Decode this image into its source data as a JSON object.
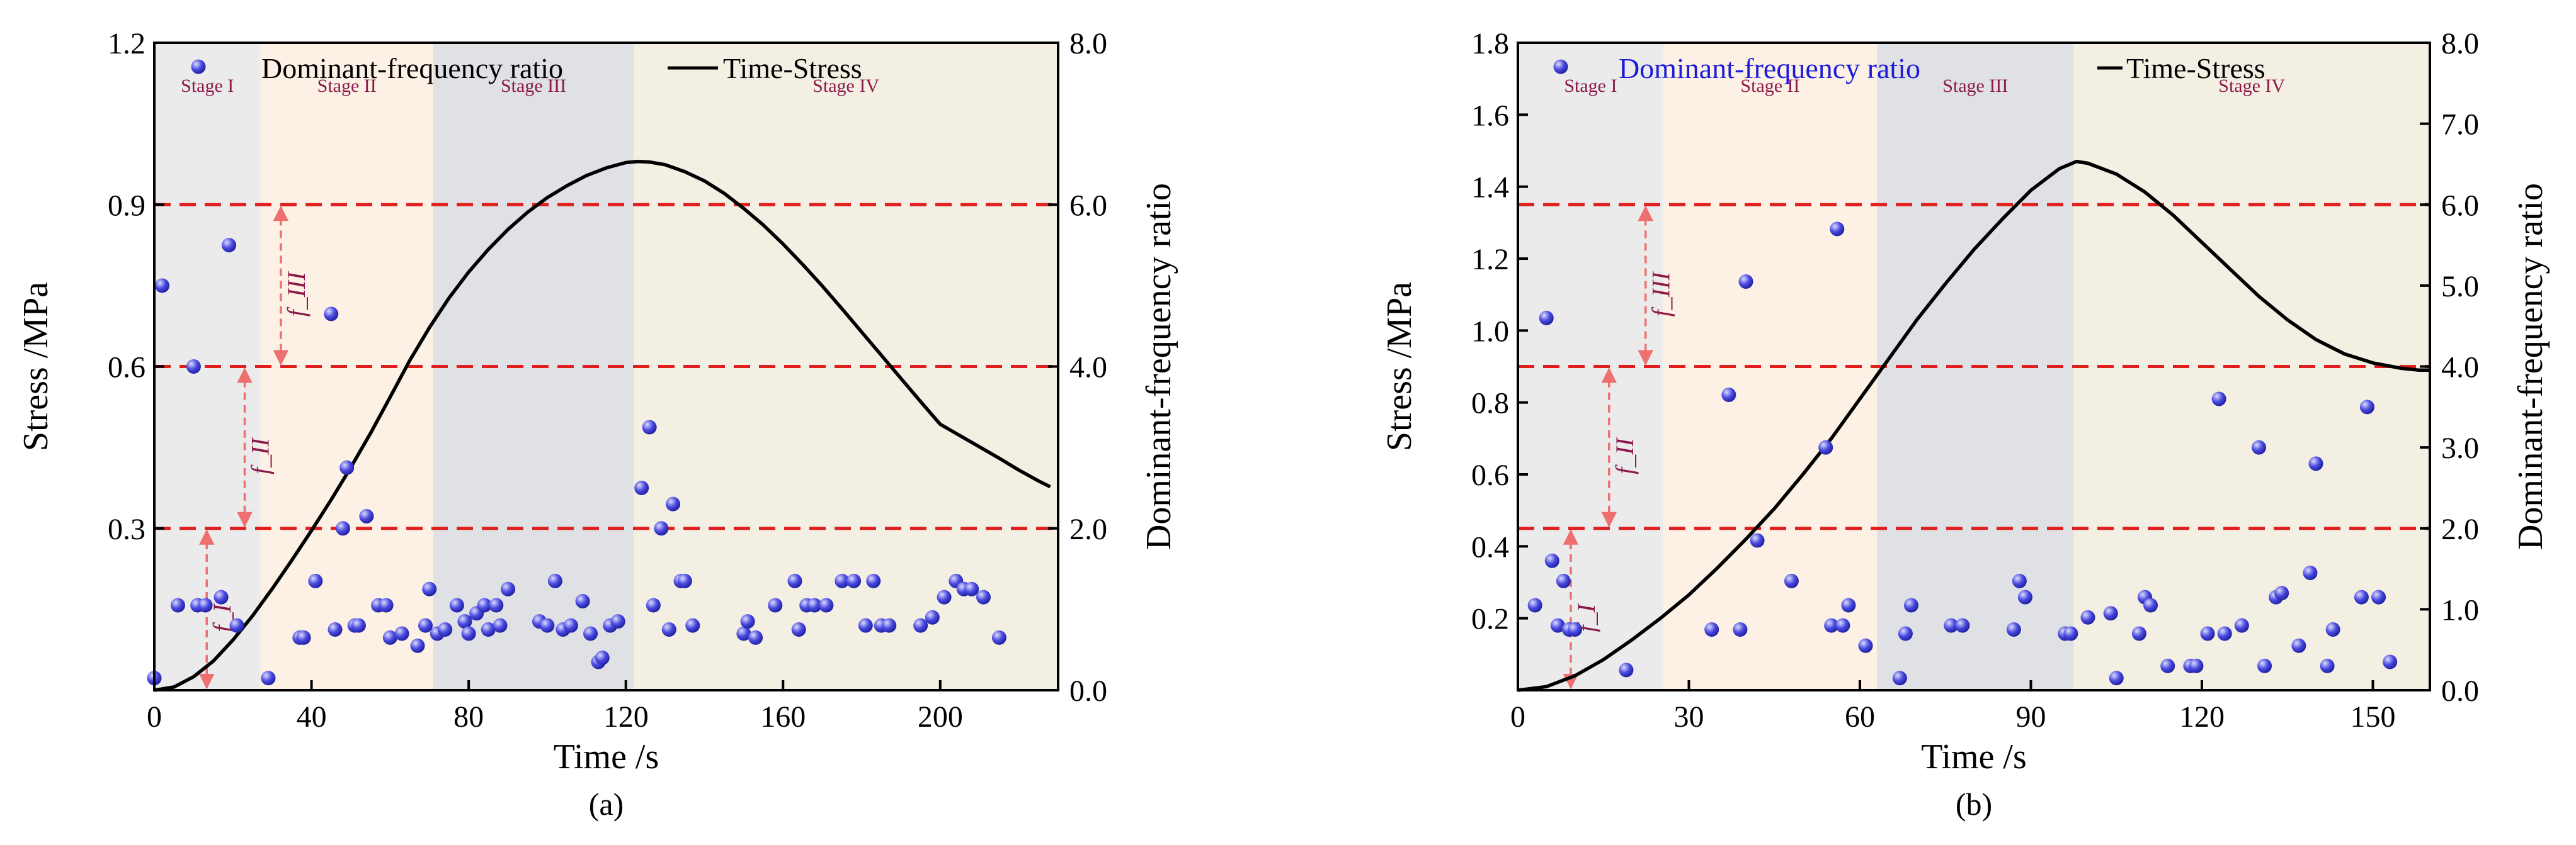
{
  "colors": {
    "stage_i": "#ebebeb",
    "stage_ii": "#fcf1e4",
    "stage_iii": "#dfe1e5",
    "stage_iv": "#f4efe3",
    "point": "#4a4ae0",
    "curve": "#000000",
    "threshold": "#e01e1e",
    "arrow": "#ee6f6f",
    "stage_label": "#8b1a4a",
    "f_label": "#8b1a4a",
    "legend_b_text": "#1c1cd8"
  },
  "chart_data": [
    {
      "type": "scatter",
      "panel_label": "(a)",
      "xlabel": "Time /s",
      "ylabel": "Stress /MPa",
      "ylabel_right": "Dominant-frequency ratio",
      "xlim": [
        0,
        230
      ],
      "ylim": [
        0,
        1.2
      ],
      "ylim_right": [
        0,
        8
      ],
      "x_ticks": [
        "0",
        "40",
        "80",
        "120",
        "160",
        "200"
      ],
      "x_tick_values": [
        0,
        40,
        80,
        120,
        160,
        200
      ],
      "y_ticks": [
        "0.3",
        "0.6",
        "0.9",
        "1.2"
      ],
      "y_tick_values": [
        0.3,
        0.6,
        0.9,
        1.2
      ],
      "y_ticks_right": [
        "0.0",
        "2.0",
        "4.0",
        "6.0",
        "8.0"
      ],
      "y_tick_values_right": [
        0,
        2,
        4,
        6,
        8
      ],
      "legend": {
        "scatter": "Dominant-frequency ratio",
        "line": "Time-Stress"
      },
      "stages": [
        {
          "label": "Stage I",
          "start": 0,
          "end": 27
        },
        {
          "label": "Stage II",
          "start": 27,
          "end": 71
        },
        {
          "label": "Stage III",
          "start": 71,
          "end": 122
        },
        {
          "label": "Stage IV",
          "start": 122,
          "end": 230
        }
      ],
      "thresholds_right": [
        2,
        4,
        6
      ],
      "f_labels": [
        "f_I",
        "f_II",
        "f_III"
      ],
      "curve_peak": {
        "time": 123,
        "stress": 0.98
      },
      "curve_end": {
        "time": 228,
        "stress": 0.38
      },
      "series": [
        {
          "name": "Time-Stress",
          "kind": "line",
          "x": [
            0,
            5,
            10,
            15,
            20,
            25,
            30,
            35,
            40,
            45,
            50,
            55,
            60,
            65,
            70,
            75,
            80,
            85,
            90,
            95,
            100,
            105,
            110,
            115,
            120,
            123,
            126,
            130,
            135,
            140,
            145,
            150,
            155,
            160,
            165,
            170,
            175,
            180,
            185,
            190,
            195,
            200,
            205,
            210,
            215,
            220,
            225,
            228
          ],
          "y": [
            0,
            0.006,
            0.025,
            0.054,
            0.093,
            0.138,
            0.188,
            0.241,
            0.296,
            0.353,
            0.413,
            0.476,
            0.543,
            0.611,
            0.672,
            0.727,
            0.775,
            0.817,
            0.854,
            0.886,
            0.913,
            0.935,
            0.954,
            0.968,
            0.978,
            0.98,
            0.979,
            0.974,
            0.961,
            0.944,
            0.921,
            0.893,
            0.862,
            0.827,
            0.789,
            0.749,
            0.707,
            0.664,
            0.621,
            0.578,
            0.535,
            0.493,
            0.472,
            0.451,
            0.43,
            0.408,
            0.388,
            0.377
          ]
        },
        {
          "name": "Dominant-frequency ratio",
          "kind": "scatter",
          "axis": "right",
          "points": [
            [
              0,
              0.15
            ],
            [
              2,
              5
            ],
            [
              6,
              1.05
            ],
            [
              10,
              4
            ],
            [
              11,
              1.05
            ],
            [
              13,
              1.05
            ],
            [
              17,
              1.15
            ],
            [
              19,
              5.5
            ],
            [
              21,
              0.8
            ],
            [
              29,
              0.15
            ],
            [
              37,
              0.65
            ],
            [
              38,
              0.65
            ],
            [
              41,
              1.35
            ],
            [
              45,
              4.65
            ],
            [
              46,
              0.75
            ],
            [
              48,
              2
            ],
            [
              49,
              2.75
            ],
            [
              51,
              0.8
            ],
            [
              52,
              0.8
            ],
            [
              54,
              2.15
            ],
            [
              57,
              1.05
            ],
            [
              59,
              1.05
            ],
            [
              60,
              0.65
            ],
            [
              63,
              0.7
            ],
            [
              67,
              0.55
            ],
            [
              69,
              0.8
            ],
            [
              70,
              1.25
            ],
            [
              72,
              0.7
            ],
            [
              74,
              0.75
            ],
            [
              77,
              1.05
            ],
            [
              79,
              0.85
            ],
            [
              80,
              0.7
            ],
            [
              82,
              0.95
            ],
            [
              84,
              1.05
            ],
            [
              85,
              0.75
            ],
            [
              87,
              1.05
            ],
            [
              88,
              0.8
            ],
            [
              90,
              1.25
            ],
            [
              98,
              0.85
            ],
            [
              100,
              0.8
            ],
            [
              102,
              1.35
            ],
            [
              104,
              0.75
            ],
            [
              106,
              0.8
            ],
            [
              109,
              1.1
            ],
            [
              111,
              0.7
            ],
            [
              113,
              0.35
            ],
            [
              114,
              0.4
            ],
            [
              116,
              0.8
            ],
            [
              118,
              0.85
            ],
            [
              124,
              2.5
            ],
            [
              126,
              3.25
            ],
            [
              127,
              1.05
            ],
            [
              129,
              2
            ],
            [
              131,
              0.75
            ],
            [
              132,
              2.3
            ],
            [
              134,
              1.35
            ],
            [
              135,
              1.35
            ],
            [
              137,
              0.8
            ],
            [
              150,
              0.7
            ],
            [
              151,
              0.85
            ],
            [
              153,
              0.65
            ],
            [
              158,
              1.05
            ],
            [
              163,
              1.35
            ],
            [
              164,
              0.75
            ],
            [
              166,
              1.05
            ],
            [
              168,
              1.05
            ],
            [
              171,
              1.05
            ],
            [
              175,
              1.35
            ],
            [
              178,
              1.35
            ],
            [
              181,
              0.8
            ],
            [
              183,
              1.35
            ],
            [
              185,
              0.8
            ],
            [
              187,
              0.8
            ],
            [
              195,
              0.8
            ],
            [
              198,
              0.9
            ],
            [
              201,
              1.15
            ],
            [
              204,
              1.35
            ],
            [
              206,
              1.25
            ],
            [
              208,
              1.25
            ],
            [
              211,
              1.15
            ],
            [
              215,
              0.65
            ]
          ]
        }
      ]
    },
    {
      "type": "scatter",
      "panel_label": "(b)",
      "xlabel": "Time /s",
      "ylabel": "Stress  /MPa",
      "ylabel_right": "Dominant-frequency ratio",
      "xlim": [
        0,
        160
      ],
      "ylim": [
        0,
        1.8
      ],
      "ylim_right": [
        0,
        8
      ],
      "x_ticks": [
        "0",
        "30",
        "60",
        "90",
        "120",
        "150"
      ],
      "x_tick_values": [
        0,
        30,
        60,
        90,
        120,
        150
      ],
      "y_ticks": [
        "0.2",
        "0.4",
        "0.6",
        "0.8",
        "1.0",
        "1.2",
        "1.4",
        "1.6",
        "1.8"
      ],
      "y_tick_values": [
        0.2,
        0.4,
        0.6,
        0.8,
        1.0,
        1.2,
        1.4,
        1.6,
        1.8
      ],
      "y_ticks_right": [
        "0.0",
        "1.0",
        "2.0",
        "3.0",
        "4.0",
        "5.0",
        "6.0",
        "7.0",
        "8.0"
      ],
      "y_tick_values_right": [
        0,
        1,
        2,
        3,
        4,
        5,
        6,
        7,
        8
      ],
      "legend": {
        "scatter": "Dominant-frequency ratio",
        "line": "Time-Stress"
      },
      "stages": [
        {
          "label": "Stage I",
          "start": 0,
          "end": 25.5
        },
        {
          "label": "Stage II",
          "start": 25.5,
          "end": 63
        },
        {
          "label": "Stage III",
          "start": 63,
          "end": 97.5
        },
        {
          "label": "Stage IV",
          "start": 97.5,
          "end": 160
        }
      ],
      "thresholds_right": [
        2,
        4,
        6
      ],
      "f_labels": [
        "f_I",
        "f_II",
        "f_III"
      ],
      "curve_peak": {
        "time": 98,
        "stress": 1.47
      },
      "curve_end": {
        "time": 160,
        "stress": 0.89
      },
      "series": [
        {
          "name": "Time-Stress",
          "kind": "line",
          "x": [
            0,
            5,
            10,
            15,
            20,
            25,
            30,
            35,
            40,
            45,
            50,
            55,
            60,
            65,
            70,
            75,
            80,
            85,
            90,
            95,
            98,
            100,
            105,
            110,
            115,
            120,
            125,
            130,
            135,
            140,
            145,
            150,
            155,
            158,
            160
          ],
          "y": [
            0,
            0.01,
            0.04,
            0.085,
            0.14,
            0.2,
            0.265,
            0.34,
            0.42,
            0.505,
            0.6,
            0.7,
            0.81,
            0.92,
            1.03,
            1.13,
            1.225,
            1.31,
            1.39,
            1.45,
            1.47,
            1.465,
            1.435,
            1.385,
            1.32,
            1.245,
            1.17,
            1.095,
            1.03,
            0.975,
            0.935,
            0.91,
            0.895,
            0.89,
            0.89
          ]
        },
        {
          "name": "Dominant-frequency ratio",
          "kind": "scatter",
          "axis": "right",
          "points": [
            [
              3,
              1.05
            ],
            [
              5,
              4.6
            ],
            [
              6,
              1.6
            ],
            [
              7,
              0.8
            ],
            [
              8,
              1.35
            ],
            [
              9,
              0.75
            ],
            [
              10,
              0.75
            ],
            [
              19,
              0.25
            ],
            [
              34,
              0.75
            ],
            [
              37,
              3.65
            ],
            [
              39,
              0.75
            ],
            [
              40,
              5.05
            ],
            [
              42,
              1.85
            ],
            [
              48,
              1.35
            ],
            [
              54,
              3
            ],
            [
              55,
              0.8
            ],
            [
              56,
              5.7
            ],
            [
              57,
              0.8
            ],
            [
              58,
              1.05
            ],
            [
              61,
              0.55
            ],
            [
              67,
              0.15
            ],
            [
              68,
              0.7
            ],
            [
              69,
              1.05
            ],
            [
              76,
              0.8
            ],
            [
              78,
              0.8
            ],
            [
              87,
              0.75
            ],
            [
              88,
              1.35
            ],
            [
              89,
              1.15
            ],
            [
              96,
              0.7
            ],
            [
              97,
              0.7
            ],
            [
              100,
              0.9
            ],
            [
              104,
              0.95
            ],
            [
              105,
              0.15
            ],
            [
              109,
              0.7
            ],
            [
              110,
              1.15
            ],
            [
              111,
              1.05
            ],
            [
              114,
              0.3
            ],
            [
              118,
              0.3
            ],
            [
              119,
              0.3
            ],
            [
              121,
              0.7
            ],
            [
              123,
              3.6
            ],
            [
              124,
              0.7
            ],
            [
              127,
              0.8
            ],
            [
              130,
              3
            ],
            [
              131,
              0.3
            ],
            [
              133,
              1.15
            ],
            [
              134,
              1.2
            ],
            [
              137,
              0.55
            ],
            [
              139,
              1.45
            ],
            [
              140,
              2.8
            ],
            [
              142,
              0.3
            ],
            [
              143,
              0.75
            ],
            [
              148,
              1.15
            ],
            [
              149,
              3.5
            ],
            [
              151,
              1.15
            ],
            [
              153,
              0.35
            ]
          ]
        }
      ]
    }
  ]
}
